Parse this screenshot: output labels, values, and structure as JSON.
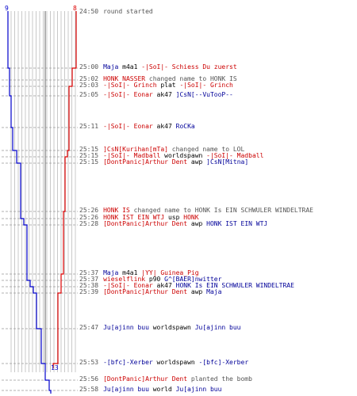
{
  "timeline": {
    "blue_team_count": "9",
    "red_team_count": "8",
    "blue_team_final": "13",
    "colors": {
      "blue": "#0000cc",
      "red": "#dd0000",
      "grid": "#bbbbbb",
      "dash": "#999999"
    }
  },
  "events": [
    {
      "time": "24:50",
      "parts": [
        {
          "text": "round started",
          "c": "gray"
        }
      ]
    },
    {
      "time": "25:00",
      "parts": [
        {
          "text": "Maja",
          "c": "blue"
        },
        {
          "text": " m4a1 ",
          "c": "blk"
        },
        {
          "text": "-|SoI|- Schiess Du zuerst",
          "c": "red"
        }
      ]
    },
    {
      "time": "25:02",
      "parts": [
        {
          "text": "HONK NASSER",
          "c": "red"
        },
        {
          "text": " changed name to HONK IS",
          "c": "gray"
        }
      ]
    },
    {
      "time": "25:03",
      "parts": [
        {
          "text": "-|SoI|- Grinch",
          "c": "red"
        },
        {
          "text": " plat ",
          "c": "blk"
        },
        {
          "text": "-|SoI|- Grinch",
          "c": "red"
        }
      ]
    },
    {
      "time": "25:05",
      "parts": [
        {
          "text": "-|SoI|- Eonar",
          "c": "red"
        },
        {
          "text": " ak47 ",
          "c": "blk"
        },
        {
          "text": "]CsN[--VuTooP--",
          "c": "blue"
        }
      ]
    },
    {
      "time": "25:11",
      "parts": [
        {
          "text": "-|SoI|- Eonar",
          "c": "red"
        },
        {
          "text": " ak47 ",
          "c": "blk"
        },
        {
          "text": "RoCKa",
          "c": "blue"
        }
      ]
    },
    {
      "time": "25:15",
      "parts": [
        {
          "text": "]CsN[Kurihan[mTa]",
          "c": "red"
        },
        {
          "text": " changed name to LOL",
          "c": "gray"
        }
      ]
    },
    {
      "time": "25:15",
      "parts": [
        {
          "text": "-|SoI|- Madball",
          "c": "red"
        },
        {
          "text": " worldspawn ",
          "c": "blk"
        },
        {
          "text": "-|SoI|- Madball",
          "c": "red"
        }
      ]
    },
    {
      "time": "25:15",
      "parts": [
        {
          "text": "[DontPanic]Arthur Dent",
          "c": "red"
        },
        {
          "text": " awp ",
          "c": "blk"
        },
        {
          "text": "]CsN[Mitna]",
          "c": "blue"
        }
      ]
    },
    {
      "time": "25:26",
      "parts": [
        {
          "text": "HONK IS",
          "c": "red"
        },
        {
          "text": " changed name to HONK Is EIN SCHWULER WINDELTRAE",
          "c": "gray"
        }
      ]
    },
    {
      "time": "25:26",
      "parts": [
        {
          "text": "HONK IST EIN WTJ",
          "c": "red"
        },
        {
          "text": " usp ",
          "c": "blk"
        },
        {
          "text": "HONK",
          "c": "red"
        }
      ]
    },
    {
      "time": "25:28",
      "parts": [
        {
          "text": "[DontPanic]Arthur Dent",
          "c": "red"
        },
        {
          "text": " awp ",
          "c": "blk"
        },
        {
          "text": "HONK IST EIN WTJ",
          "c": "blue"
        }
      ]
    },
    {
      "time": "25:37",
      "parts": [
        {
          "text": "Maja",
          "c": "blue"
        },
        {
          "text": " m4a1 ",
          "c": "blk"
        },
        {
          "text": "|YY| Guinea_Pig",
          "c": "red"
        }
      ]
    },
    {
      "time": "25:37",
      "parts": [
        {
          "text": "wieselflink",
          "c": "red"
        },
        {
          "text": " p90 ",
          "c": "blk"
        },
        {
          "text": "G^[BAER]nwitter",
          "c": "blue"
        }
      ]
    },
    {
      "time": "25:38",
      "parts": [
        {
          "text": "-|SoI|- Eonar",
          "c": "red"
        },
        {
          "text": " ak47 ",
          "c": "blk"
        },
        {
          "text": "HONK Is EIN SCHWULER WINDELTRAE",
          "c": "blue"
        }
      ]
    },
    {
      "time": "25:39",
      "parts": [
        {
          "text": "[DontPanic]Arthur Dent",
          "c": "red"
        },
        {
          "text": " awp ",
          "c": "blk"
        },
        {
          "text": "Maja",
          "c": "blue"
        }
      ]
    },
    {
      "time": "25:47",
      "parts": [
        {
          "text": "Ju[ajinn buu",
          "c": "blue"
        },
        {
          "text": " worldspawn ",
          "c": "blk"
        },
        {
          "text": "Ju[ajinn buu",
          "c": "blue"
        }
      ]
    },
    {
      "time": "25:53",
      "parts": [
        {
          "text": "-[bfc]-Xerber",
          "c": "blue"
        },
        {
          "text": " worldspawn ",
          "c": "blk"
        },
        {
          "text": "-[bfc]-Xerber",
          "c": "blue"
        }
      ]
    },
    {
      "time": "25:56",
      "parts": [
        {
          "text": "[DontPanic]Arthur Dent",
          "c": "red"
        },
        {
          "text": " planted the bomb",
          "c": "gray"
        }
      ]
    },
    {
      "time": "25:58",
      "parts": [
        {
          "text": "Ju[ajinn buu",
          "c": "blue"
        },
        {
          "text": " world ",
          "c": "blk"
        },
        {
          "text": "Ju[ajinn buu",
          "c": "blue"
        }
      ]
    }
  ]
}
